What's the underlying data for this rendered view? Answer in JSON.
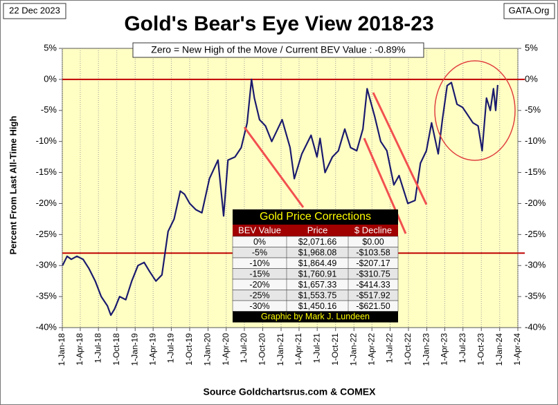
{
  "chart_data": {
    "type": "line",
    "title": "Gold's Bear's Eye View 2018-23",
    "date_label": "22 Dec 2023",
    "site_label": "GATA.Org",
    "annotation": "Zero = New High of the Move / Current  BEV Value : -0.89%",
    "y_label": "Percent  From Last  All-Time  High",
    "source": "Source Goldchartsrus.com & COMEX",
    "ylim": [
      -40,
      5
    ],
    "yticks": [
      {
        "value": 5,
        "label": "5%"
      },
      {
        "value": 0,
        "label": "0%"
      },
      {
        "value": -5,
        "label": "-5%"
      },
      {
        "value": -10,
        "label": "-10%"
      },
      {
        "value": -15,
        "label": "-15%"
      },
      {
        "value": -20,
        "label": "-20%"
      },
      {
        "value": -25,
        "label": "-25%"
      },
      {
        "value": -30,
        "label": "-30%"
      },
      {
        "value": -35,
        "label": "-35%"
      },
      {
        "value": -40,
        "label": "-40%"
      }
    ],
    "xlim": [
      "2018-01-01",
      "2024-04-01"
    ],
    "xticks": [
      {
        "value": "2018-01-01",
        "label": "1-Jan-18"
      },
      {
        "value": "2018-04-01",
        "label": "1-Apr-18"
      },
      {
        "value": "2018-07-01",
        "label": "1-Jul-18"
      },
      {
        "value": "2018-10-01",
        "label": "1-Oct-18"
      },
      {
        "value": "2019-01-01",
        "label": "1-Jan-19"
      },
      {
        "value": "2019-04-01",
        "label": "1-Apr-19"
      },
      {
        "value": "2019-07-01",
        "label": "1-Jul-19"
      },
      {
        "value": "2019-10-01",
        "label": "1-Oct-19"
      },
      {
        "value": "2020-01-01",
        "label": "1-Jan-20"
      },
      {
        "value": "2020-04-01",
        "label": "1-Apr-20"
      },
      {
        "value": "2020-07-01",
        "label": "1-Jul-20"
      },
      {
        "value": "2020-10-01",
        "label": "1-Oct-20"
      },
      {
        "value": "2021-01-01",
        "label": "1-Jan-21"
      },
      {
        "value": "2021-04-01",
        "label": "1-Apr-21"
      },
      {
        "value": "2021-07-01",
        "label": "1-Jul-21"
      },
      {
        "value": "2021-10-01",
        "label": "1-Oct-21"
      },
      {
        "value": "2022-01-01",
        "label": "1-Jan-22"
      },
      {
        "value": "2022-04-01",
        "label": "1-Apr-22"
      },
      {
        "value": "2022-07-01",
        "label": "1-Jul-22"
      },
      {
        "value": "2022-10-01",
        "label": "1-Oct-22"
      },
      {
        "value": "2023-01-01",
        "label": "1-Jan-23"
      },
      {
        "value": "2023-04-01",
        "label": "1-Apr-23"
      },
      {
        "value": "2023-07-01",
        "label": "1-Jul-23"
      },
      {
        "value": "2023-10-01",
        "label": "1-Oct-23"
      },
      {
        "value": "2024-01-01",
        "label": "1-Jan-24"
      },
      {
        "value": "2024-04-01",
        "label": "1-Apr-24"
      }
    ],
    "hlines": [
      0,
      -28
    ],
    "hline_color": "#c00000",
    "grid": true,
    "x": [
      "2018-01-02",
      "2018-01-25",
      "2018-02-15",
      "2018-03-15",
      "2018-04-15",
      "2018-05-15",
      "2018-06-15",
      "2018-07-15",
      "2018-08-15",
      "2018-09-01",
      "2018-09-20",
      "2018-10-15",
      "2018-11-15",
      "2018-12-15",
      "2019-01-15",
      "2019-02-15",
      "2019-03-15",
      "2019-04-15",
      "2019-05-15",
      "2019-06-15",
      "2019-07-15",
      "2019-08-15",
      "2019-09-05",
      "2019-10-01",
      "2019-11-01",
      "2019-12-01",
      "2020-01-08",
      "2020-02-20",
      "2020-03-19",
      "2020-04-10",
      "2020-05-15",
      "2020-06-15",
      "2020-07-15",
      "2020-08-06",
      "2020-08-20",
      "2020-09-15",
      "2020-10-15",
      "2020-11-15",
      "2020-12-15",
      "2021-01-06",
      "2021-02-15",
      "2021-03-08",
      "2021-04-15",
      "2021-05-31",
      "2021-06-30",
      "2021-07-15",
      "2021-08-09",
      "2021-09-15",
      "2021-10-15",
      "2021-11-16",
      "2021-12-15",
      "2022-01-15",
      "2022-02-15",
      "2022-03-08",
      "2022-04-15",
      "2022-05-15",
      "2022-06-15",
      "2022-07-20",
      "2022-08-15",
      "2022-09-28",
      "2022-11-03",
      "2022-11-30",
      "2022-12-30",
      "2023-01-25",
      "2023-02-27",
      "2023-03-20",
      "2023-04-13",
      "2023-05-04",
      "2023-06-01",
      "2023-06-29",
      "2023-07-20",
      "2023-08-20",
      "2023-09-15",
      "2023-10-05",
      "2023-10-27",
      "2023-11-15",
      "2023-12-01",
      "2023-12-12",
      "2023-12-22"
    ],
    "series": [
      {
        "name": "Gold BEV",
        "color": "#1a1a6e",
        "values": [
          -30,
          -28.5,
          -29,
          -28.5,
          -29,
          -30.5,
          -32.5,
          -35,
          -36.5,
          -38,
          -37,
          -35,
          -35.5,
          -32.5,
          -30,
          -29.5,
          -31,
          -32.5,
          -31.5,
          -24.5,
          -22.5,
          -18,
          -18.5,
          -20,
          -21,
          -21.5,
          -16,
          -13,
          -22,
          -13,
          -12.5,
          -11,
          -7,
          0,
          -3,
          -6.5,
          -7.5,
          -10,
          -8,
          -6.5,
          -11,
          -16,
          -12,
          -9,
          -12.5,
          -9.5,
          -15,
          -12.5,
          -11.5,
          -8,
          -11,
          -11.5,
          -8,
          -1.5,
          -6,
          -10,
          -11.5,
          -17,
          -15.5,
          -20,
          -19.5,
          -13.5,
          -11.5,
          -7,
          -12,
          -6.5,
          -1,
          -0.5,
          -4,
          -4.5,
          -5.5,
          -7,
          -7.5,
          -11.5,
          -3,
          -5,
          -1.5,
          -5,
          -0.89
        ]
      }
    ],
    "table": {
      "title": "Gold Price Corrections",
      "header": [
        "BEV Value",
        "Price",
        "$ Decline"
      ],
      "rows": [
        [
          "0%",
          "$2,071.66",
          "$0.00"
        ],
        [
          "-5%",
          "$1,968.08",
          "-$103.58"
        ],
        [
          "-10%",
          "$1,864.49",
          "-$207.17"
        ],
        [
          "-15%",
          "$1,760.91",
          "-$310.75"
        ],
        [
          "-20%",
          "$1,657.33",
          "-$414.33"
        ],
        [
          "-25%",
          "$1,553.75",
          "-$517.92"
        ],
        [
          "-30%",
          "$1,450.16",
          "-$621.50"
        ]
      ],
      "footer": "Graphic by Mark J. Lundeen"
    }
  }
}
